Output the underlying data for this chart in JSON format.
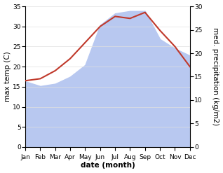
{
  "months": [
    "Jan",
    "Feb",
    "Mar",
    "Apr",
    "May",
    "Jun",
    "Jul",
    "Aug",
    "Sep",
    "Oct",
    "Nov",
    "Dec"
  ],
  "month_indices": [
    0,
    1,
    2,
    3,
    4,
    5,
    6,
    7,
    8,
    9,
    10,
    11
  ],
  "temperature": [
    16.5,
    17.0,
    19.0,
    22.0,
    26.0,
    30.0,
    32.5,
    32.0,
    33.5,
    29.0,
    25.0,
    20.0
  ],
  "precipitation": [
    14.0,
    13.0,
    13.5,
    15.0,
    17.5,
    26.0,
    28.5,
    29.0,
    29.0,
    23.0,
    21.0,
    19.5
  ],
  "temp_color": "#c0392b",
  "precip_color": "#b8c8f0",
  "temp_ylim": [
    0,
    35
  ],
  "precip_ylim": [
    0,
    30
  ],
  "temp_yticks": [
    0,
    5,
    10,
    15,
    20,
    25,
    30,
    35
  ],
  "precip_yticks": [
    0,
    5,
    10,
    15,
    20,
    25,
    30
  ],
  "xlabel": "date (month)",
  "ylabel_left": "max temp (C)",
  "ylabel_right": "med. precipitation (kg/m2)",
  "bg_color": "#ffffff",
  "label_fontsize": 7.5,
  "tick_fontsize": 6.5
}
